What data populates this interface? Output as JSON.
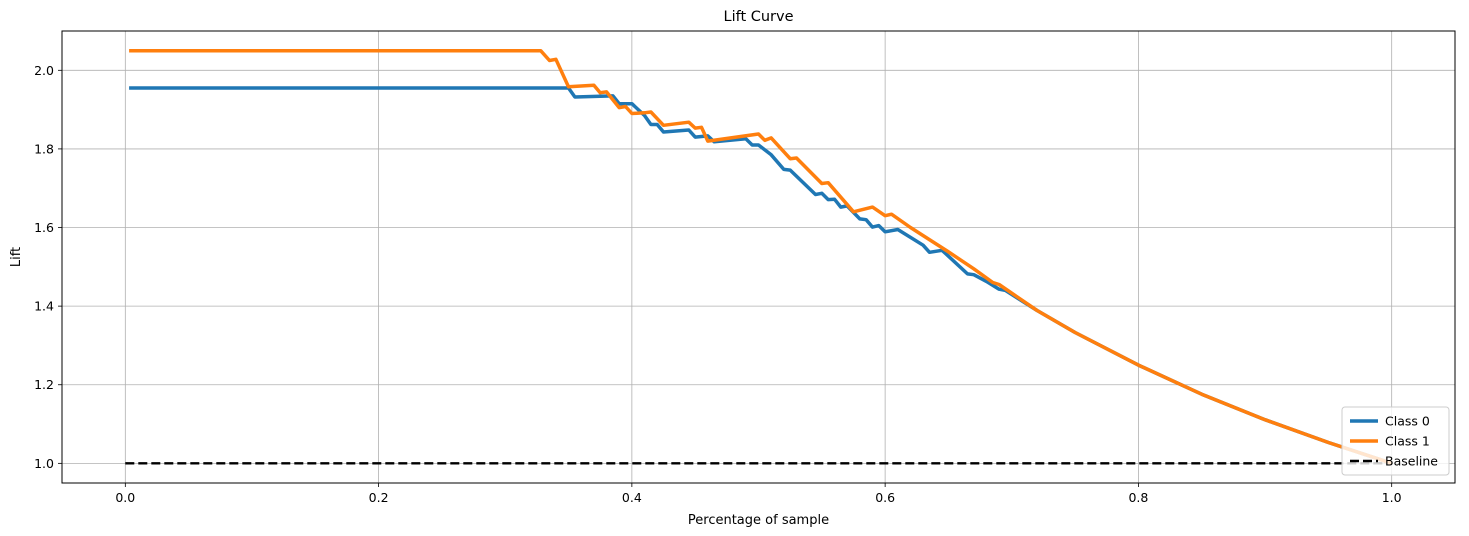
{
  "chart_data": {
    "type": "line",
    "title": "Lift Curve",
    "xlabel": "Percentage of sample",
    "ylabel": "Lift",
    "xlim": [
      -0.05,
      1.05
    ],
    "ylim": [
      0.95,
      2.1
    ],
    "x_ticks": [
      0.0,
      0.2,
      0.4,
      0.6,
      0.8,
      1.0
    ],
    "x_tick_labels": [
      "0.0",
      "0.2",
      "0.4",
      "0.6",
      "0.8",
      "1.0"
    ],
    "y_ticks": [
      1.0,
      1.2,
      1.4,
      1.6,
      1.8,
      2.0
    ],
    "y_tick_labels": [
      "1.0",
      "1.2",
      "1.4",
      "1.6",
      "1.8",
      "2.0"
    ],
    "grid": true,
    "legend_position": "bottom-right",
    "series": [
      {
        "name": "Class 0",
        "color": "#1f77b4",
        "style": "solid",
        "points": [
          [
            0.003,
            1.955
          ],
          [
            0.35,
            1.955
          ],
          [
            0.355,
            1.932
          ],
          [
            0.385,
            1.935
          ],
          [
            0.39,
            1.915
          ],
          [
            0.4,
            1.915
          ],
          [
            0.41,
            1.885
          ],
          [
            0.415,
            1.862
          ],
          [
            0.42,
            1.862
          ],
          [
            0.425,
            1.843
          ],
          [
            0.445,
            1.848
          ],
          [
            0.45,
            1.83
          ],
          [
            0.46,
            1.833
          ],
          [
            0.465,
            1.818
          ],
          [
            0.49,
            1.826
          ],
          [
            0.495,
            1.81
          ],
          [
            0.5,
            1.81
          ],
          [
            0.51,
            1.785
          ],
          [
            0.52,
            1.748
          ],
          [
            0.525,
            1.746
          ],
          [
            0.545,
            1.684
          ],
          [
            0.55,
            1.687
          ],
          [
            0.555,
            1.671
          ],
          [
            0.56,
            1.672
          ],
          [
            0.565,
            1.652
          ],
          [
            0.57,
            1.655
          ],
          [
            0.58,
            1.622
          ],
          [
            0.585,
            1.62
          ],
          [
            0.59,
            1.601
          ],
          [
            0.595,
            1.605
          ],
          [
            0.6,
            1.589
          ],
          [
            0.61,
            1.595
          ],
          [
            0.63,
            1.555
          ],
          [
            0.635,
            1.537
          ],
          [
            0.645,
            1.542
          ],
          [
            0.665,
            1.482
          ],
          [
            0.67,
            1.48
          ],
          [
            0.68,
            1.463
          ],
          [
            0.69,
            1.443
          ],
          [
            0.695,
            1.44
          ],
          [
            0.72,
            1.389
          ],
          [
            0.75,
            1.333
          ],
          [
            0.8,
            1.25
          ],
          [
            0.85,
            1.176
          ],
          [
            0.9,
            1.111
          ],
          [
            0.95,
            1.053
          ],
          [
            1.0,
            1.0
          ]
        ]
      },
      {
        "name": "Class 1",
        "color": "#ff7f0e",
        "style": "solid",
        "points": [
          [
            0.003,
            2.05
          ],
          [
            0.328,
            2.05
          ],
          [
            0.335,
            2.025
          ],
          [
            0.34,
            2.028
          ],
          [
            0.35,
            1.958
          ],
          [
            0.37,
            1.962
          ],
          [
            0.375,
            1.943
          ],
          [
            0.38,
            1.945
          ],
          [
            0.39,
            1.905
          ],
          [
            0.395,
            1.908
          ],
          [
            0.4,
            1.89
          ],
          [
            0.41,
            1.892
          ],
          [
            0.415,
            1.894
          ],
          [
            0.425,
            1.86
          ],
          [
            0.445,
            1.868
          ],
          [
            0.45,
            1.853
          ],
          [
            0.455,
            1.855
          ],
          [
            0.46,
            1.82
          ],
          [
            0.5,
            1.838
          ],
          [
            0.505,
            1.822
          ],
          [
            0.51,
            1.828
          ],
          [
            0.525,
            1.775
          ],
          [
            0.53,
            1.777
          ],
          [
            0.55,
            1.712
          ],
          [
            0.555,
            1.714
          ],
          [
            0.575,
            1.64
          ],
          [
            0.59,
            1.652
          ],
          [
            0.6,
            1.63
          ],
          [
            0.605,
            1.634
          ],
          [
            0.62,
            1.6
          ],
          [
            0.65,
            1.538
          ],
          [
            0.67,
            1.495
          ],
          [
            0.685,
            1.46
          ],
          [
            0.69,
            1.455
          ],
          [
            0.72,
            1.389
          ],
          [
            0.75,
            1.333
          ],
          [
            0.8,
            1.25
          ],
          [
            0.85,
            1.176
          ],
          [
            0.9,
            1.111
          ],
          [
            0.95,
            1.053
          ],
          [
            1.0,
            1.0
          ]
        ]
      },
      {
        "name": "Baseline",
        "color": "#000000",
        "style": "dashed",
        "points": [
          [
            0.0,
            1.0
          ],
          [
            1.0,
            1.0
          ]
        ]
      }
    ]
  }
}
